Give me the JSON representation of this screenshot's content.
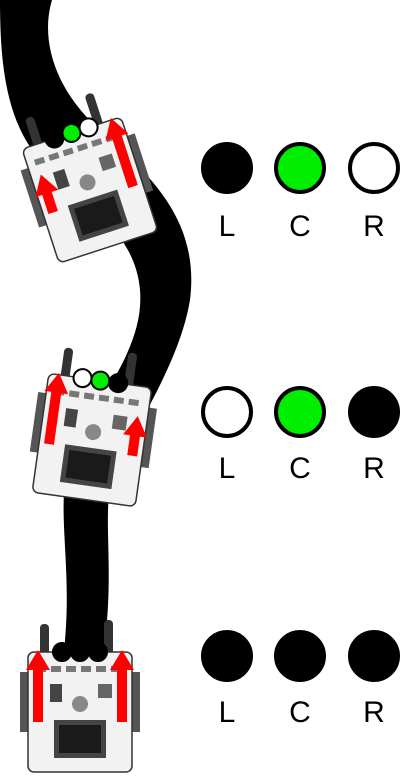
{
  "colors": {
    "track": "#000000",
    "led_on": "#00ee00",
    "led_black": "#000000",
    "led_white": "#ffffff",
    "arrow": "#ff0000",
    "robot_body": "#f2f2f2",
    "robot_outline": "#333333",
    "screen": "#1a1a1a"
  },
  "sensor_labels": [
    "L",
    "C",
    "R"
  ],
  "scenarios": [
    {
      "id": "top",
      "sensors": [
        "black",
        "green",
        "white"
      ],
      "robot_leds": [
        "black",
        "green",
        "white"
      ],
      "left_arrow": "short",
      "right_arrow": "long"
    },
    {
      "id": "middle",
      "sensors": [
        "white",
        "green",
        "black"
      ],
      "robot_leds": [
        "white",
        "green",
        "black"
      ],
      "left_arrow": "long",
      "right_arrow": "short"
    },
    {
      "id": "bottom",
      "sensors": [
        "black",
        "black",
        "black"
      ],
      "robot_leds": [
        "black",
        "black",
        "black"
      ],
      "left_arrow": "long",
      "right_arrow": "long"
    }
  ]
}
